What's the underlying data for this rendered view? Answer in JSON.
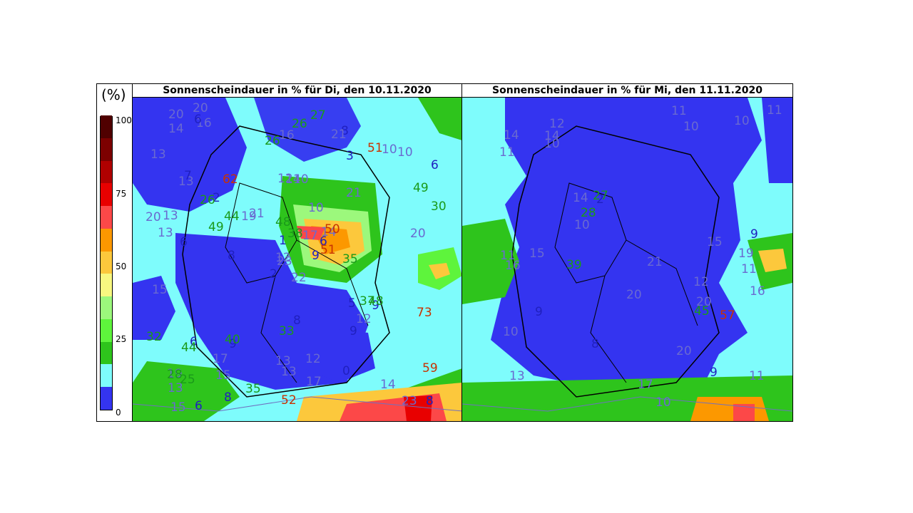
{
  "legend": {
    "unit": "(%)",
    "ticks": [
      "100",
      "75",
      "50",
      "25",
      "0"
    ],
    "colors": [
      "#3434f0",
      "#7efcfc",
      "#2ec41c",
      "#5ef43c",
      "#9cf87c",
      "#f8f880",
      "#fcc83c",
      "#fc9800",
      "#fc4848",
      "#e80000",
      "#b00000",
      "#7c0000",
      "#500000"
    ]
  },
  "panels": [
    {
      "title": "Sonnenscheindauer in % für Di, den 10.11.2020",
      "labels": [
        "22",
        "13",
        "23",
        "19",
        "14",
        "9",
        "8",
        "10",
        "3",
        "9",
        "16",
        "8",
        "6",
        "6",
        "2",
        "21",
        "6",
        "12",
        "10",
        "6",
        "21",
        "13",
        "15",
        "14",
        "50",
        "9",
        "7",
        "16",
        "13",
        "5",
        "30",
        "12",
        "13",
        "1",
        "62",
        "51",
        "40",
        "23",
        "59",
        "48",
        "27",
        "19",
        "49",
        "9",
        "8",
        "20",
        "6",
        "15",
        "13",
        "51",
        "44",
        "49",
        "13",
        "12",
        "0",
        "17",
        "6",
        "20",
        "12",
        "10",
        "26",
        "8",
        "13",
        "2",
        "10",
        "20",
        "21",
        "26",
        "38",
        "32",
        "33",
        "35",
        "37",
        "44",
        "28",
        "14",
        "26",
        "15",
        "48",
        "17",
        "17",
        "25",
        "35",
        "73",
        "52",
        "20",
        "8",
        "14"
      ]
    },
    {
      "title": "Sonnenscheindauer in % für Mi, den 11.11.2020",
      "labels": [
        "12",
        "11",
        "13",
        "12",
        "2",
        "9",
        "10",
        "10",
        "14",
        "10",
        "11",
        "11",
        "14",
        "11",
        "8",
        "9",
        "20",
        "21",
        "27",
        "9",
        "11",
        "10",
        "10",
        "16",
        "11",
        "14",
        "20",
        "16",
        "10",
        "15",
        "17",
        "20",
        "28",
        "39",
        "19",
        "57",
        "45",
        "15"
      ]
    }
  ]
}
